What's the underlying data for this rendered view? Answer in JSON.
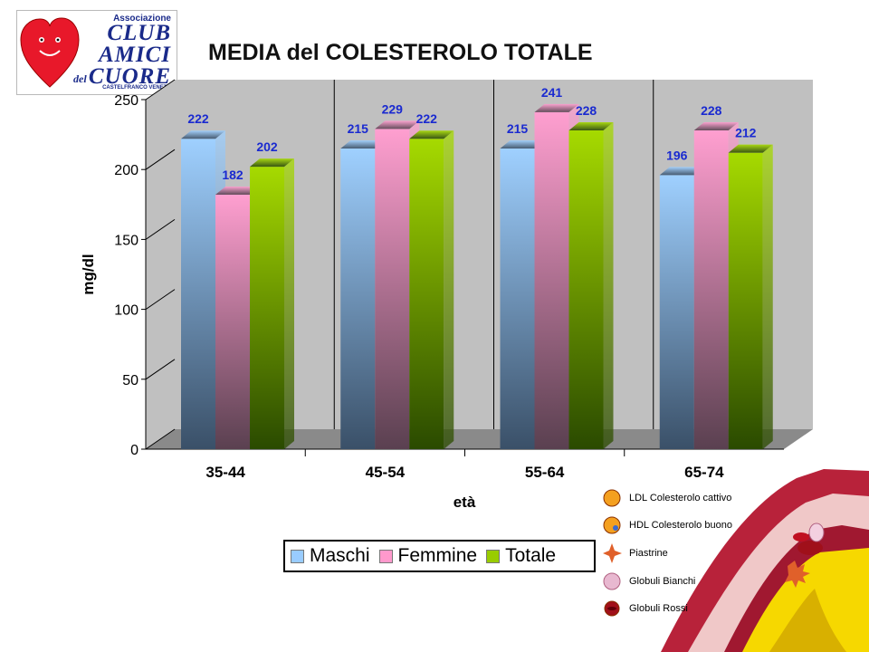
{
  "logo": {
    "line1": "Associazione",
    "line2": "CLUB",
    "line3": "AMICI",
    "line4": "del",
    "line5": "CUORE",
    "line6": "CASTELFRANCO VENETO"
  },
  "chart_data": {
    "type": "bar",
    "title": "MEDIA del COLESTEROLO TOTALE",
    "xlabel": "età",
    "ylabel": "mg/dl",
    "ylim": [
      0,
      250
    ],
    "yticks": [
      0,
      50,
      100,
      150,
      200,
      250
    ],
    "categories": [
      "35-44",
      "45-54",
      "55-64",
      "65-74"
    ],
    "series": [
      {
        "name": "Maschi",
        "values": [
          222,
          215,
          215,
          196
        ],
        "color": "#99ccff"
      },
      {
        "name": "Femmine",
        "values": [
          182,
          229,
          241,
          228
        ],
        "color": "#ff99cc"
      },
      {
        "name": "Totale",
        "values": [
          202,
          222,
          228,
          212
        ],
        "color": "#99cc00"
      }
    ],
    "legend_position": "bottom",
    "grid": false,
    "style": "3d"
  },
  "artery": {
    "labels": [
      {
        "text": "LDL Colesterolo cattivo",
        "icon": "ldl-particle-icon",
        "color": "#f4a020"
      },
      {
        "text": "HDL Colesterolo buono",
        "icon": "hdl-particle-icon",
        "color": "#f4a020"
      },
      {
        "text": "Piastrine",
        "icon": "platelet-icon",
        "color": "#e0602a"
      },
      {
        "text": "Globuli Bianchi",
        "icon": "white-cell-icon",
        "color": "#e8b8d0"
      },
      {
        "text": "Globuli Rossi",
        "icon": "red-cell-icon",
        "color": "#a0101a"
      }
    ]
  }
}
